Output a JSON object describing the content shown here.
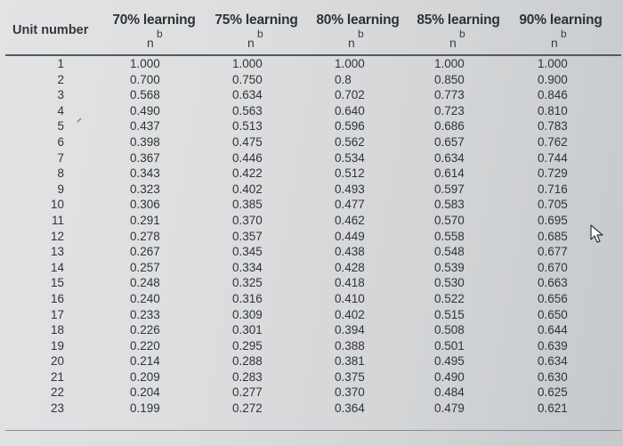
{
  "table": {
    "unit_header": "Unit number",
    "formula": {
      "base": "n",
      "exponent": "b"
    },
    "columns": [
      "70% learning",
      "75% learning",
      "80% learning",
      "85% learning",
      "90% learning"
    ],
    "rows": [
      {
        "unit": "1",
        "values": [
          "1.000",
          "1.000",
          "1.000",
          "1.000",
          "1.000"
        ]
      },
      {
        "unit": "2",
        "values": [
          "0.700",
          "0.750",
          "0.8",
          "0.850",
          "0.900"
        ]
      },
      {
        "unit": "3",
        "values": [
          "0.568",
          "0.634",
          "0.702",
          "0.773",
          "0.846"
        ]
      },
      {
        "unit": "4",
        "values": [
          "0.490",
          "0.563",
          "0.640",
          "0.723",
          "0.810"
        ]
      },
      {
        "unit": "5",
        "values": [
          "0.437",
          "0.513",
          "0.596",
          "0.686",
          "0.783"
        ]
      },
      {
        "unit": "6",
        "values": [
          "0.398",
          "0.475",
          "0.562",
          "0.657",
          "0.762"
        ]
      },
      {
        "unit": "7",
        "values": [
          "0.367",
          "0.446",
          "0.534",
          "0.634",
          "0.744"
        ]
      },
      {
        "unit": "8",
        "values": [
          "0.343",
          "0.422",
          "0.512",
          "0.614",
          "0.729"
        ]
      },
      {
        "unit": "9",
        "values": [
          "0.323",
          "0.402",
          "0.493",
          "0.597",
          "0.716"
        ]
      },
      {
        "unit": "10",
        "values": [
          "0.306",
          "0.385",
          "0.477",
          "0.583",
          "0.705"
        ]
      },
      {
        "unit": "11",
        "values": [
          "0.291",
          "0.370",
          "0.462",
          "0.570",
          "0.695"
        ]
      },
      {
        "unit": "12",
        "values": [
          "0.278",
          "0.357",
          "0.449",
          "0.558",
          "0.685"
        ]
      },
      {
        "unit": "13",
        "values": [
          "0.267",
          "0.345",
          "0.438",
          "0.548",
          "0.677"
        ]
      },
      {
        "unit": "14",
        "values": [
          "0.257",
          "0.334",
          "0.428",
          "0.539",
          "0.670"
        ]
      },
      {
        "unit": "15",
        "values": [
          "0.248",
          "0.325",
          "0.418",
          "0.530",
          "0.663"
        ]
      },
      {
        "unit": "16",
        "values": [
          "0.240",
          "0.316",
          "0.410",
          "0.522",
          "0.656"
        ]
      },
      {
        "unit": "17",
        "values": [
          "0.233",
          "0.309",
          "0.402",
          "0.515",
          "0.650"
        ]
      },
      {
        "unit": "18",
        "values": [
          "0.226",
          "0.301",
          "0.394",
          "0.508",
          "0.644"
        ]
      },
      {
        "unit": "19",
        "values": [
          "0.220",
          "0.295",
          "0.388",
          "0.501",
          "0.639"
        ]
      },
      {
        "unit": "20",
        "values": [
          "0.214",
          "0.288",
          "0.381",
          "0.495",
          "0.634"
        ]
      },
      {
        "unit": "21",
        "values": [
          "0.209",
          "0.283",
          "0.375",
          "0.490",
          "0.630"
        ]
      },
      {
        "unit": "22",
        "values": [
          "0.204",
          "0.277",
          "0.370",
          "0.484",
          "0.625"
        ]
      },
      {
        "unit": "23",
        "values": [
          "0.199",
          "0.272",
          "0.364",
          "0.479",
          "0.621"
        ]
      }
    ]
  },
  "icons": {
    "cursor": "mouse-pointer-icon"
  },
  "colors": {
    "text": "#2b2d30",
    "rule": "#55585c"
  }
}
